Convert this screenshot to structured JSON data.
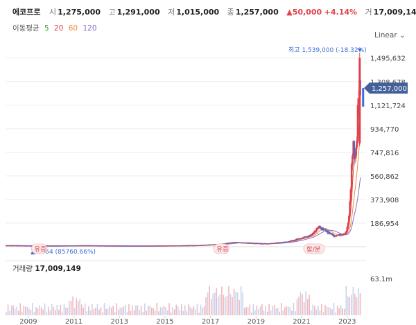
{
  "header": {
    "stock_name": "에코프로",
    "open_label": "시",
    "open": "1,275,000",
    "high_label": "고",
    "high": "1,291,000",
    "low_label": "저",
    "low": "1,015,000",
    "close_label": "종",
    "close": "1,257,000",
    "change": "▲50,000",
    "change_pct": "+4.14%",
    "volume_label": "거",
    "volume": "17,009,149"
  },
  "moving_average": {
    "label": "이동평균",
    "periods": [
      {
        "value": "5",
        "color": "#3aa03a"
      },
      {
        "value": "20",
        "color": "#e0414b"
      },
      {
        "value": "60",
        "color": "#f08a3c"
      },
      {
        "value": "120",
        "color": "#8a6ad0"
      }
    ]
  },
  "scale_toggle": {
    "label": "Linear",
    "icon": "chevron-down-icon"
  },
  "price_axis_labels": [
    "1,495,632",
    "1,308,678",
    "1,121,724",
    "934,770",
    "747,816",
    "560,862",
    "373,908",
    "186,954"
  ],
  "current_price_tag": "1,257,000",
  "high_annotation": "최고 1,539,000 (-18.32%)",
  "low_annotation": "1,464 (85760.66%)",
  "event_markers": [
    "유증",
    "유증",
    "합/분"
  ],
  "volume_panel": {
    "label": "거래량",
    "value": "17,009,149",
    "axis_max": "63.1m"
  },
  "year_labels": [
    "2009",
    "2011",
    "2013",
    "2015",
    "2017",
    "2019",
    "2021",
    "2023"
  ],
  "colors": {
    "up": "#e0414b",
    "down": "#3d6fd6",
    "volume_down": "#c9d3ee",
    "volume_up": "#f2b8bc",
    "price_tag": "#44609a"
  },
  "chart_data": {
    "type": "candlestick",
    "scale": "linear",
    "grid": true,
    "y_ticks": [
      186954,
      373908,
      560862,
      747816,
      934770,
      1121724,
      1308678,
      1495632
    ],
    "ylim": [
      0,
      1560000
    ],
    "x_range": [
      "2008-01",
      "2023-10"
    ],
    "all_time_high": 1539000,
    "all_time_low": 1464,
    "last_close": 1257000,
    "monthly_close": [
      {
        "date": "2008-06",
        "value": 9000
      },
      {
        "date": "2009-06",
        "value": 6000
      },
      {
        "date": "2010-06",
        "value": 7000
      },
      {
        "date": "2011-06",
        "value": 9000
      },
      {
        "date": "2012-06",
        "value": 7000
      },
      {
        "date": "2013-06",
        "value": 6000
      },
      {
        "date": "2014-06",
        "value": 6000
      },
      {
        "date": "2015-06",
        "value": 8000
      },
      {
        "date": "2016-06",
        "value": 10000
      },
      {
        "date": "2017-06",
        "value": 20000
      },
      {
        "date": "2018-01",
        "value": 35000
      },
      {
        "date": "2018-06",
        "value": 30000
      },
      {
        "date": "2019-06",
        "value": 22000
      },
      {
        "date": "2020-06",
        "value": 40000
      },
      {
        "date": "2021-06",
        "value": 90000
      },
      {
        "date": "2021-10",
        "value": 160000
      },
      {
        "date": "2022-06",
        "value": 85000
      },
      {
        "date": "2022-12",
        "value": 100000
      },
      {
        "date": "2023-01",
        "value": 150000
      },
      {
        "date": "2023-02",
        "value": 260000
      },
      {
        "date": "2023-03",
        "value": 500000
      },
      {
        "date": "2023-04",
        "value": 820000
      },
      {
        "date": "2023-05",
        "value": 700000
      },
      {
        "date": "2023-06",
        "value": 850000
      },
      {
        "date": "2023-07",
        "value": 1200000
      },
      {
        "date": "2023-08",
        "value": 1257000
      }
    ],
    "volume_max_label": "63.1m"
  }
}
